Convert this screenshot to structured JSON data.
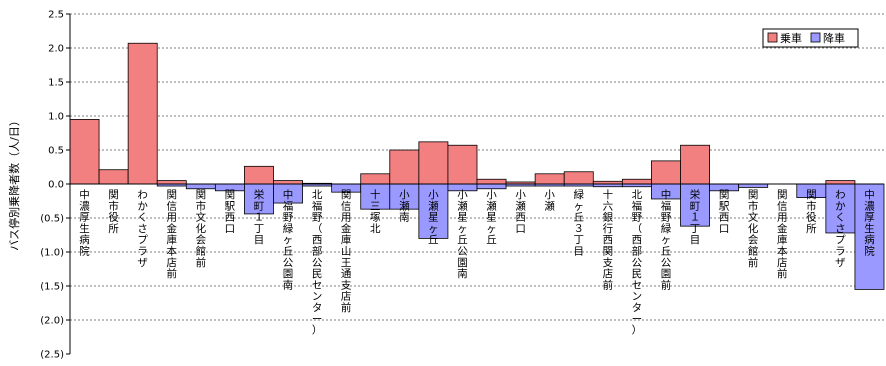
{
  "chart_data": {
    "type": "bar",
    "ylabel": "バス停別乗降者数（人/日）",
    "ylim": [
      -2.5,
      2.5
    ],
    "yticks": [
      {
        "value": 2.5,
        "label": "2.5"
      },
      {
        "value": 2.0,
        "label": "2.0"
      },
      {
        "value": 1.5,
        "label": "1.5"
      },
      {
        "value": 1.0,
        "label": "1.0"
      },
      {
        "value": 0.5,
        "label": "0.5"
      },
      {
        "value": 0.0,
        "label": "0.0"
      },
      {
        "value": -0.5,
        "label": "(0.5)"
      },
      {
        "value": -1.0,
        "label": "(1.0)"
      },
      {
        "value": -1.5,
        "label": "(1.5)"
      },
      {
        "value": -2.0,
        "label": "(2.0)"
      },
      {
        "value": -2.5,
        "label": "(2.5)"
      }
    ],
    "grid": true,
    "legend_position": "top-right",
    "categories": [
      "中濃厚生病院",
      "関市役所",
      "わかくさプラザ",
      "関信用金庫本店前",
      "関市文化会館前",
      "関駅西口",
      "栄町１丁目",
      "中福野緑ヶ丘公園南",
      "北福野（西部公民センター）",
      "関信用金庫山王通支店前",
      "十三塚北",
      "小瀬南",
      "小瀬星ヶ丘",
      "小瀬星ヶ丘公園南",
      "小瀬星ヶ丘",
      "小瀬西口",
      "小瀬",
      "緑ヶ丘３丁目",
      "十六銀行西関支店前",
      "北福野（西部公民センター）",
      "中福野緑ヶ丘公園前",
      "栄町１丁目",
      "関駅西口",
      "関市文化会館前",
      "関信用金庫本店前",
      "関市役所",
      "わかくさプラザ",
      "中濃厚生病院"
    ],
    "series": [
      {
        "name": "乗車",
        "color": "#f28080",
        "values": [
          0.95,
          0.21,
          2.07,
          0.05,
          0.0,
          0.0,
          0.26,
          0.05,
          0.01,
          0.0,
          0.15,
          0.5,
          0.62,
          0.57,
          0.07,
          0.03,
          0.15,
          0.18,
          0.04,
          0.07,
          0.34,
          0.57,
          0.0,
          0.0,
          0.0,
          0.0,
          0.05,
          0.0
        ]
      },
      {
        "name": "降車",
        "color": "#9999ff",
        "values": [
          0.0,
          0.0,
          0.0,
          -0.03,
          -0.07,
          -0.1,
          -0.44,
          -0.28,
          -0.03,
          -0.12,
          -0.37,
          -0.37,
          -0.8,
          -0.1,
          -0.07,
          -0.03,
          -0.03,
          -0.03,
          -0.04,
          -0.04,
          -0.22,
          -0.62,
          -0.1,
          -0.05,
          0.0,
          -0.2,
          -0.72,
          -1.55
        ]
      }
    ]
  }
}
